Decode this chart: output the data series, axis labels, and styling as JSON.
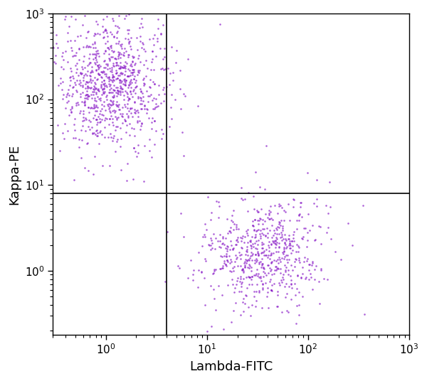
{
  "title": "",
  "xlabel": "Lambda-FITC",
  "ylabel": "Kappa-PE",
  "xlim": [
    0.3,
    1000
  ],
  "ylim": [
    0.18,
    1000
  ],
  "dot_color": "#8B1FC8",
  "dot_size": 3.5,
  "dot_alpha": 0.7,
  "quadrant_vline": 4.0,
  "quadrant_hline": 8.0,
  "cluster1": {
    "n": 900,
    "x_center_log": 0.05,
    "y_center_log": 2.15,
    "x_std_log": 0.28,
    "y_std_log": 0.38
  },
  "cluster2": {
    "n": 650,
    "x_center_log": 1.55,
    "y_center_log": 0.2,
    "x_std_log": 0.32,
    "y_std_log": 0.32
  },
  "scatter_seed": 42,
  "label_fontsize": 13,
  "tick_fontsize": 11
}
